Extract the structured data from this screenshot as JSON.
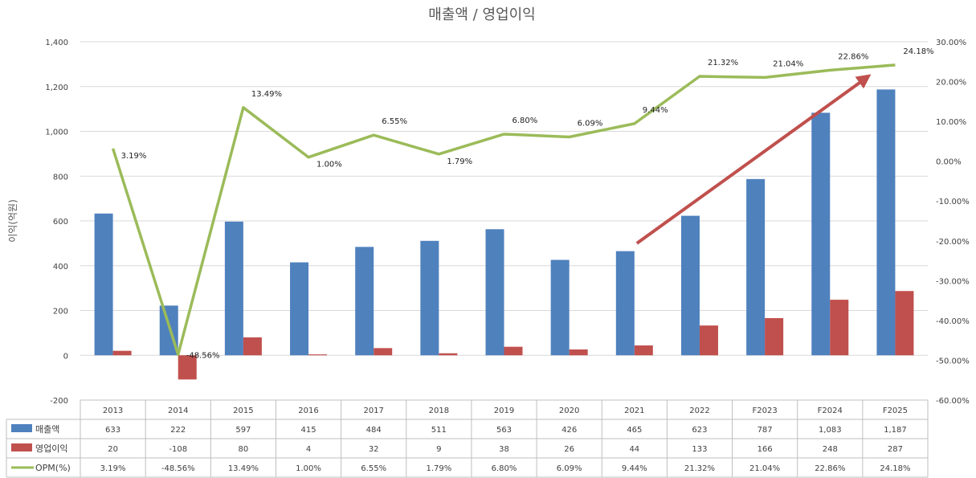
{
  "chart_data": {
    "type": "bar",
    "title": "매출액 / 영업이익",
    "ylabel": "이익(억원)",
    "categories": [
      "2013",
      "2014",
      "2015",
      "2016",
      "2017",
      "2018",
      "2019",
      "2020",
      "2021",
      "2022",
      "F2023",
      "F2024",
      "F2025"
    ],
    "series": [
      {
        "name": "매출액",
        "type": "bar",
        "axis": "left",
        "color": "#4F81BD",
        "values": [
          633,
          222,
          597,
          415,
          484,
          511,
          563,
          426,
          465,
          623,
          787,
          1083,
          1187
        ]
      },
      {
        "name": "영업이익",
        "type": "bar",
        "axis": "left",
        "color": "#C0504D",
        "values": [
          20,
          -108,
          80,
          4,
          32,
          9,
          38,
          26,
          44,
          133,
          166,
          248,
          287
        ]
      },
      {
        "name": "OPM(%)",
        "type": "line",
        "axis": "right",
        "color": "#9BBB59",
        "values": [
          3.19,
          -48.56,
          13.49,
          1.0,
          6.55,
          1.79,
          6.8,
          6.09,
          9.44,
          21.32,
          21.04,
          22.86,
          24.18
        ]
      }
    ],
    "table": {
      "rows": [
        {
          "label": "매출액",
          "cells": [
            "633",
            "222",
            "597",
            "415",
            "484",
            "511",
            "563",
            "426",
            "465",
            "623",
            "787",
            "1,083",
            "1,187"
          ]
        },
        {
          "label": "영업이익",
          "cells": [
            "20",
            "-108",
            "80",
            "4",
            "32",
            "9",
            "38",
            "26",
            "44",
            "133",
            "166",
            "248",
            "287"
          ]
        },
        {
          "label": "OPM(%)",
          "cells": [
            "3.19%",
            "-48.56%",
            "13.49%",
            "1.00%",
            "6.55%",
            "1.79%",
            "6.80%",
            "6.09%",
            "9.44%",
            "21.32%",
            "21.04%",
            "22.86%",
            "24.18%"
          ]
        }
      ]
    },
    "line_labels": [
      "3.19%",
      "-48.56%",
      "13.49%",
      "1.00%",
      "6.55%",
      "1.79%",
      "6.80%",
      "6.09%",
      "9.44%",
      "21.32%",
      "21.04%",
      "22.86%",
      "24.18%"
    ],
    "y_left": {
      "min": -200,
      "max": 1400,
      "ticks": [
        -200,
        0,
        200,
        400,
        600,
        800,
        1000,
        1200,
        1400
      ],
      "tick_labels": [
        "-200",
        "0",
        "200",
        "400",
        "600",
        "800",
        "1,000",
        "1,200",
        "1,400"
      ]
    },
    "y_right": {
      "min": -60,
      "max": 30,
      "ticks": [
        -60,
        -50,
        -40,
        -30,
        -20,
        -10,
        0,
        10,
        20,
        30
      ],
      "tick_labels": [
        "-60.00%",
        "-50.00%",
        "-40.00%",
        "-30.00%",
        "-20.00%",
        "-10.00%",
        "0.00%",
        "10.00%",
        "20.00%",
        "30.00%"
      ]
    },
    "grid": true,
    "legend": "data-table",
    "annotations": [
      {
        "type": "arrow",
        "color": "#C0504D",
        "from": {
          "category": "2021",
          "y_left": 500
        },
        "to": {
          "category": "F2025",
          "y_left": 1255
        }
      }
    ]
  }
}
